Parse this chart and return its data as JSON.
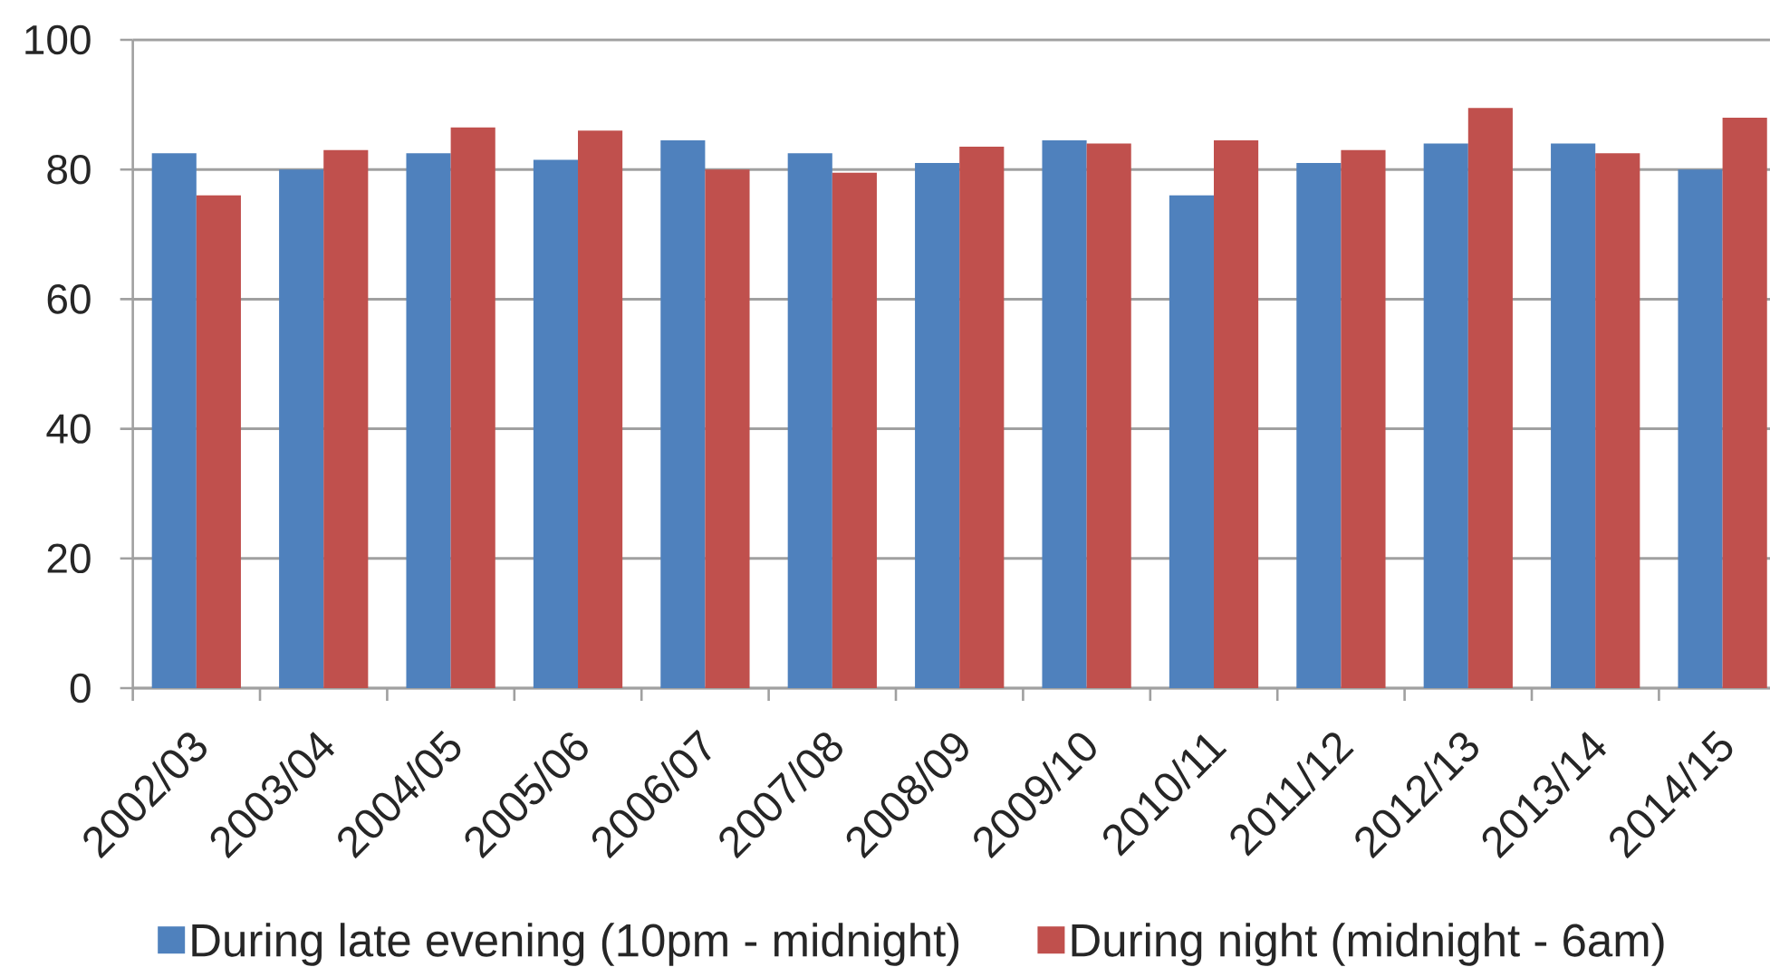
{
  "chart_data": {
    "type": "bar",
    "categories": [
      "2002/03",
      "2003/04",
      "2004/05",
      "2005/06",
      "2006/07",
      "2007/08",
      "2008/09",
      "2009/10",
      "2010/11",
      "2011/12",
      "2012/13",
      "2013/14",
      "2014/15"
    ],
    "series": [
      {
        "name": "During late evening (10pm - midnight)",
        "color": "#4f81bd",
        "values": [
          82.5,
          80,
          82.5,
          81.5,
          84.5,
          82.5,
          81,
          84.5,
          76,
          81,
          84,
          84,
          80
        ]
      },
      {
        "name": "During night (midnight - 6am)",
        "color": "#c0504d",
        "values": [
          76,
          83,
          86.5,
          86,
          80,
          79.5,
          83.5,
          84,
          84.5,
          83,
          89.5,
          82.5,
          88
        ]
      }
    ],
    "ylim": [
      0,
      100
    ],
    "yticks": [
      0,
      20,
      40,
      60,
      80,
      100
    ],
    "grid": "y",
    "legend": "bottom"
  }
}
